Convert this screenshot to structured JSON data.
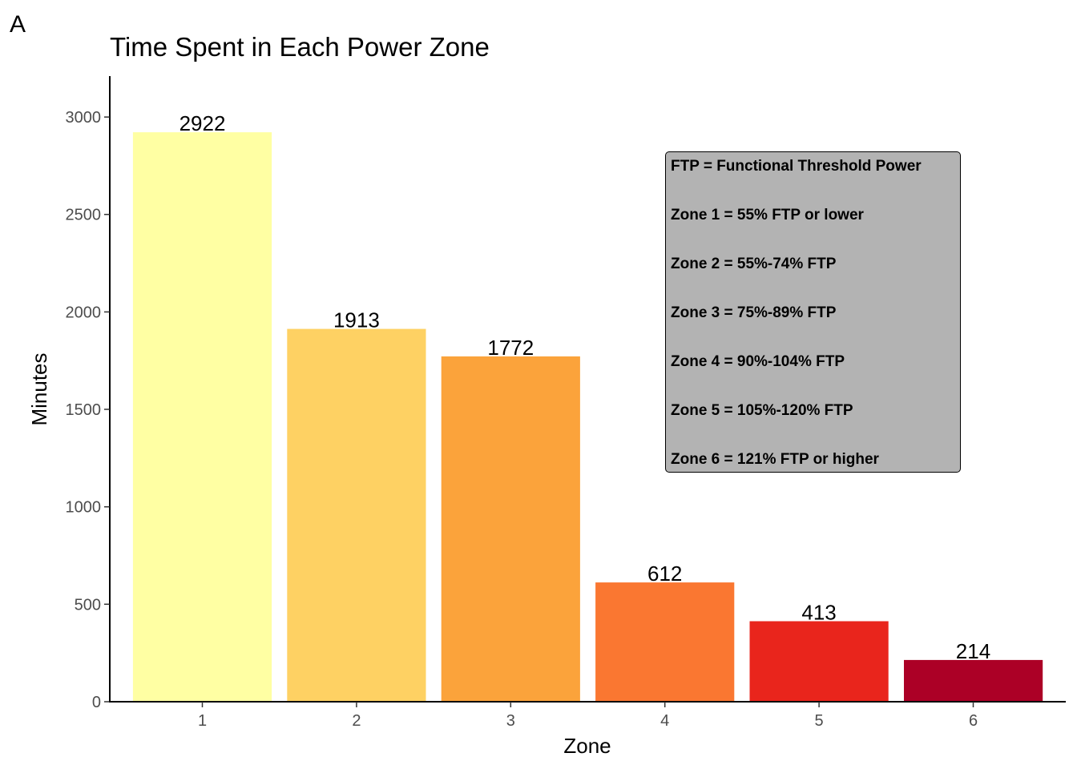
{
  "figure": {
    "panel_label": "A"
  },
  "chart_data": {
    "type": "bar",
    "title": "Time Spent in Each Power Zone",
    "xlabel": "Zone",
    "ylabel": "Minutes",
    "categories": [
      "1",
      "2",
      "3",
      "4",
      "5",
      "6"
    ],
    "values": [
      2922,
      1913,
      1772,
      612,
      413,
      214
    ],
    "data_labels": [
      "2922",
      "1913",
      "1772",
      "612",
      "413",
      "214"
    ],
    "colors": [
      "#FFFFA3",
      "#FED163",
      "#FBA33B",
      "#FA7731",
      "#E9251C",
      "#AC0026"
    ],
    "ylim": [
      0,
      3210
    ],
    "yticks": [
      0,
      500,
      1000,
      1500,
      2000,
      2500,
      3000
    ],
    "ytick_labels": [
      "0",
      "500",
      "1000",
      "1500",
      "2000",
      "2500",
      "3000"
    ],
    "grid": false,
    "legend": "none",
    "annotation": {
      "placement": "upper-right",
      "lines": [
        "FTP = Functional Threshold Power",
        "Zone 1 = 55% FTP or lower",
        "Zone 2 = 55%-74% FTP",
        "Zone 3 = 75%-89% FTP",
        "Zone 4 = 90%-104% FTP",
        "Zone 5 = 105%-120% FTP",
        "Zone 6 = 121% FTP or higher"
      ]
    }
  }
}
